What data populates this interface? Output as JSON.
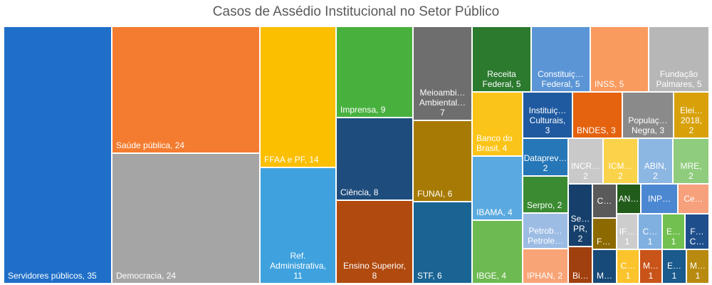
{
  "chart_data": {
    "type": "treemap",
    "title": "Casos de Assédio Institucional no Setor Público",
    "items": [
      {
        "name": "Servidores públicos",
        "value": 35,
        "label": "Servidores públicos, 35",
        "color": "#1F6FC8"
      },
      {
        "name": "Saúde pública",
        "value": 24,
        "label": "Saúde pública, 24",
        "color": "#F47C30"
      },
      {
        "name": "Democracia",
        "value": 24,
        "label": "Democracia, 24",
        "color": "#A5A5A5"
      },
      {
        "name": "FFAA e PF",
        "value": 14,
        "label": "FFAA e PF, 14",
        "color": "#FBBF00"
      },
      {
        "name": "Ref. Administrativa",
        "value": 11,
        "label": "Ref.|Administrativa,|11",
        "color": "#3FA2DE"
      },
      {
        "name": "Imprensa",
        "value": 9,
        "label": "Imprensa, 9",
        "color": "#48B13E"
      },
      {
        "name": "Ciência",
        "value": 8,
        "label": "Ciência, 8",
        "color": "#1E4C7C"
      },
      {
        "name": "Ensino Superior",
        "value": 8,
        "label": "Ensino Superior,|8",
        "color": "#B04A0F"
      },
      {
        "name": "Meioambiente/Ambiental",
        "value": 7,
        "label": "Meioambi…|Ambiental…|7",
        "color": "#6E6E6E"
      },
      {
        "name": "FUNAI",
        "value": 6,
        "label": "FUNAI, 6",
        "color": "#A77A05"
      },
      {
        "name": "STF",
        "value": 6,
        "label": "STF, 6",
        "color": "#1A6494"
      },
      {
        "name": "Receita Federal",
        "value": 5,
        "label": "Receita|Federal, 5",
        "color": "#2B7A2E"
      },
      {
        "name": "Constituição Federal",
        "value": 5,
        "label": "Constituiç…|Federal, 5",
        "color": "#5B95D6"
      },
      {
        "name": "INSS",
        "value": 5,
        "label": "INSS, 5",
        "color": "#F99A5E"
      },
      {
        "name": "Fundação Palmares",
        "value": 5,
        "label": "Fundação|Palmares, 5",
        "color": "#B7B7B7"
      },
      {
        "name": "Banco do Brasil",
        "value": 4,
        "label": "Banco do|Brasil, 4",
        "color": "#FBC419"
      },
      {
        "name": "IBAMA",
        "value": 4,
        "label": "IBAMA, 4",
        "color": "#5AAADF"
      },
      {
        "name": "IBGE",
        "value": 4,
        "label": "IBGE, 4",
        "color": "#6DBA52"
      },
      {
        "name": "Instituições Culturais",
        "value": 3,
        "label": "Instituiç…|Culturais,|3",
        "color": "#1F5AA0"
      },
      {
        "name": "BNDES",
        "value": 3,
        "label": "BNDES, 3",
        "color": "#E5620E"
      },
      {
        "name": "População Negra",
        "value": 3,
        "label": "Populaç…|Negra, 3",
        "color": "#8A8A8A"
      },
      {
        "name": "Eleições 2018",
        "value": 2,
        "label": "Elei…|2018,|2",
        "color": "#D8A10A"
      },
      {
        "name": "Dataprev",
        "value": 2,
        "label": "Dataprev…|2",
        "color": "#2577B8"
      },
      {
        "name": "INCRA",
        "value": 2,
        "label": "INCR…|2",
        "color": "#C9C9C9"
      },
      {
        "name": "ICMBio",
        "value": 2,
        "label": "ICM…|2",
        "color": "#FBD34A"
      },
      {
        "name": "ABIN",
        "value": 2,
        "label": "ABIN,|2",
        "color": "#8DB7E3"
      },
      {
        "name": "MRE",
        "value": 2,
        "label": "MRE,|2",
        "color": "#8FCC7D"
      },
      {
        "name": "Serpro",
        "value": 2,
        "label": "Serpro, 2",
        "color": "#3B8B32"
      },
      {
        "name": "Petrobras",
        "value": 2,
        "label": "Petrob…|Petrole…",
        "color": "#9CBCE4"
      },
      {
        "name": "IPHAN",
        "value": 2,
        "label": "IPHAN, 2",
        "color": "#F9A477"
      },
      {
        "name": "SE-PR",
        "value": 2,
        "label": "Se…|PR,|2",
        "color": "#16406B"
      },
      {
        "name": "C1",
        "value": 1,
        "label": "C…",
        "color": "#5A5A5A"
      },
      {
        "name": "F1",
        "value": 1,
        "label": "F…",
        "color": "#8C6A00"
      },
      {
        "name": "AN",
        "value": 1,
        "label": "AN…",
        "color": "#225C1A"
      },
      {
        "name": "INP",
        "value": 1,
        "label": "INP…",
        "color": "#4C88D2"
      },
      {
        "name": "Ce",
        "value": 1,
        "label": "Ce…",
        "color": "#F7A07C"
      },
      {
        "name": "IF",
        "value": 1,
        "label": "IF…|1",
        "color": "#CDCDCD"
      },
      {
        "name": "C2",
        "value": 1,
        "label": "C…|1",
        "color": "#7FB0E0"
      },
      {
        "name": "E1",
        "value": 1,
        "label": "E…|1",
        "color": "#72C04F"
      },
      {
        "name": "F2",
        "value": 1,
        "label": "F…|C…",
        "color": "#1F4E8C"
      },
      {
        "name": "Bi",
        "value": 1,
        "label": "Bi…",
        "color": "#A0400E"
      },
      {
        "name": "M1",
        "value": 1,
        "label": "M…",
        "color": "#174A78"
      },
      {
        "name": "C3",
        "value": 1,
        "label": "C…|1",
        "color": "#FBC42C"
      },
      {
        "name": "M2",
        "value": 1,
        "label": "M…|1",
        "color": "#C9541A"
      },
      {
        "name": "E2",
        "value": 1,
        "label": "E…|1",
        "color": "#1A5A8C"
      },
      {
        "name": "M3",
        "value": 1,
        "label": "M…|1",
        "color": "#B88A10"
      }
    ]
  }
}
